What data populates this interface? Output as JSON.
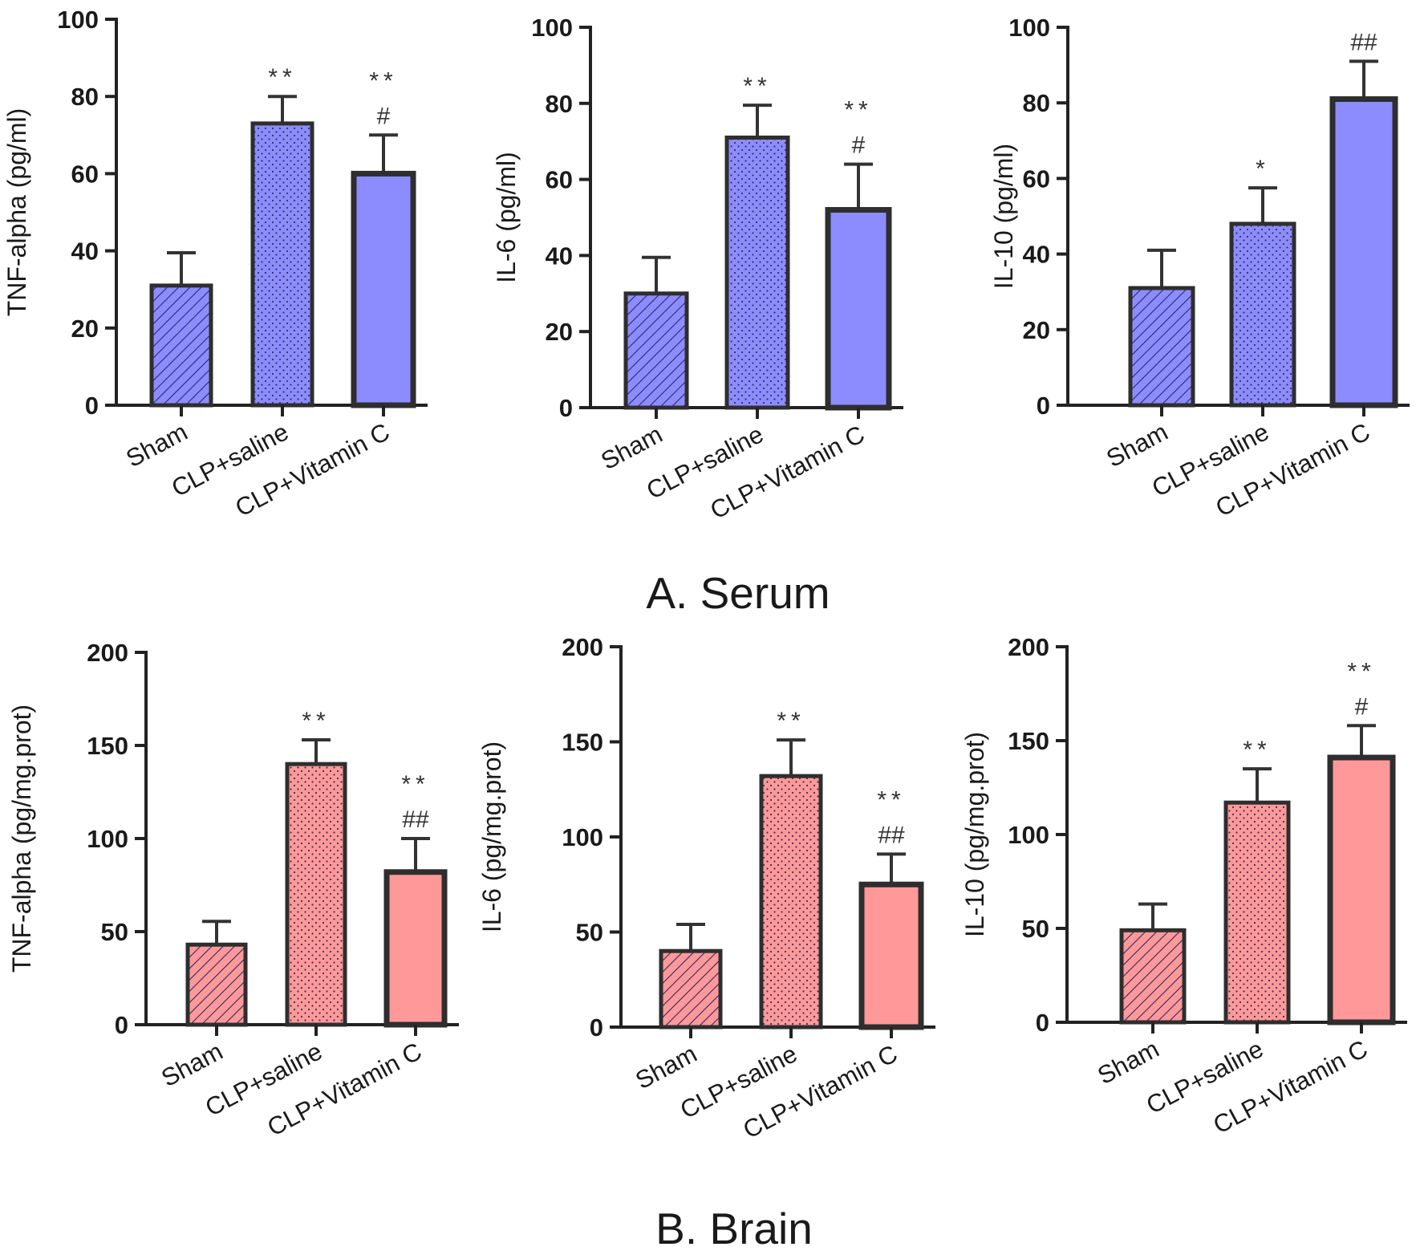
{
  "figure": {
    "colors": {
      "serum_fill": "#8c8cff",
      "brain_fill": "#ff9999",
      "outline": "#2e2e2e",
      "text": "#1a1a1a"
    },
    "sections": [
      {
        "id": "serum",
        "title": "A. Serum"
      },
      {
        "id": "brain",
        "title": "B. Brain"
      }
    ]
  },
  "chart_data": [
    {
      "type": "bar",
      "section": "A. Serum",
      "ylabel": "TNF-alpha (pg/ml)",
      "categories": [
        "Sham",
        "CLP+saline",
        "CLP+Vitamin C"
      ],
      "values": [
        31,
        73,
        60
      ],
      "errors": [
        8.5,
        7,
        10
      ],
      "significance": [
        [],
        [
          "**"
        ],
        [
          "**",
          "#"
        ]
      ],
      "patterns": [
        "hatch",
        "dots",
        "solid"
      ],
      "ylim": [
        0,
        100
      ],
      "yticks": [
        0,
        20,
        40,
        60,
        80,
        100
      ]
    },
    {
      "type": "bar",
      "section": "A. Serum",
      "ylabel": "IL-6 (pg/ml)",
      "categories": [
        "Sham",
        "CLP+saline",
        "CLP+Vitamin C"
      ],
      "values": [
        30,
        71,
        52
      ],
      "errors": [
        9.5,
        8.5,
        12
      ],
      "significance": [
        [],
        [
          "**"
        ],
        [
          "**",
          "#"
        ]
      ],
      "patterns": [
        "hatch",
        "dots",
        "solid"
      ],
      "ylim": [
        0,
        100
      ],
      "yticks": [
        0,
        20,
        40,
        60,
        80,
        100
      ]
    },
    {
      "type": "bar",
      "section": "A. Serum",
      "ylabel": "IL-10 (pg/ml)",
      "categories": [
        "Sham",
        "CLP+saline",
        "CLP+Vitamin C"
      ],
      "values": [
        31,
        48,
        81
      ],
      "errors": [
        10,
        9.5,
        10
      ],
      "significance": [
        [],
        [
          "*"
        ],
        [
          "##"
        ]
      ],
      "patterns": [
        "hatch",
        "dots",
        "solid"
      ],
      "ylim": [
        0,
        100
      ],
      "yticks": [
        0,
        20,
        40,
        60,
        80,
        100
      ]
    },
    {
      "type": "bar",
      "section": "B. Brain",
      "ylabel": "TNF-alpha (pg/mg.prot)",
      "categories": [
        "Sham",
        "CLP+saline",
        "CLP+Vitamin C"
      ],
      "values": [
        43,
        140,
        82
      ],
      "errors": [
        12.5,
        13,
        18
      ],
      "significance": [
        [],
        [
          "**"
        ],
        [
          "**",
          "##"
        ]
      ],
      "patterns": [
        "hatch",
        "dots",
        "solid"
      ],
      "ylim": [
        0,
        200
      ],
      "yticks": [
        0,
        50,
        100,
        150,
        200
      ]
    },
    {
      "type": "bar",
      "section": "B. Brain",
      "ylabel": "IL-6 (pg/mg.prot)",
      "categories": [
        "Sham",
        "CLP+saline",
        "CLP+Vitamin C"
      ],
      "values": [
        40,
        132,
        75
      ],
      "errors": [
        14,
        19,
        16
      ],
      "significance": [
        [],
        [
          "**"
        ],
        [
          "**",
          "##"
        ]
      ],
      "patterns": [
        "hatch",
        "dots",
        "solid"
      ],
      "ylim": [
        0,
        200
      ],
      "yticks": [
        0,
        50,
        100,
        150,
        200
      ]
    },
    {
      "type": "bar",
      "section": "B. Brain",
      "ylabel": "IL-10 (pg/mg.prot)",
      "categories": [
        "Sham",
        "CLP+saline",
        "CLP+Vitamin C"
      ],
      "values": [
        49,
        117,
        141
      ],
      "errors": [
        14,
        18,
        17
      ],
      "significance": [
        [],
        [
          "**"
        ],
        [
          "**",
          "#"
        ]
      ],
      "patterns": [
        "hatch",
        "dots",
        "solid"
      ],
      "ylim": [
        0,
        200
      ],
      "yticks": [
        0,
        50,
        100,
        150,
        200
      ]
    }
  ]
}
